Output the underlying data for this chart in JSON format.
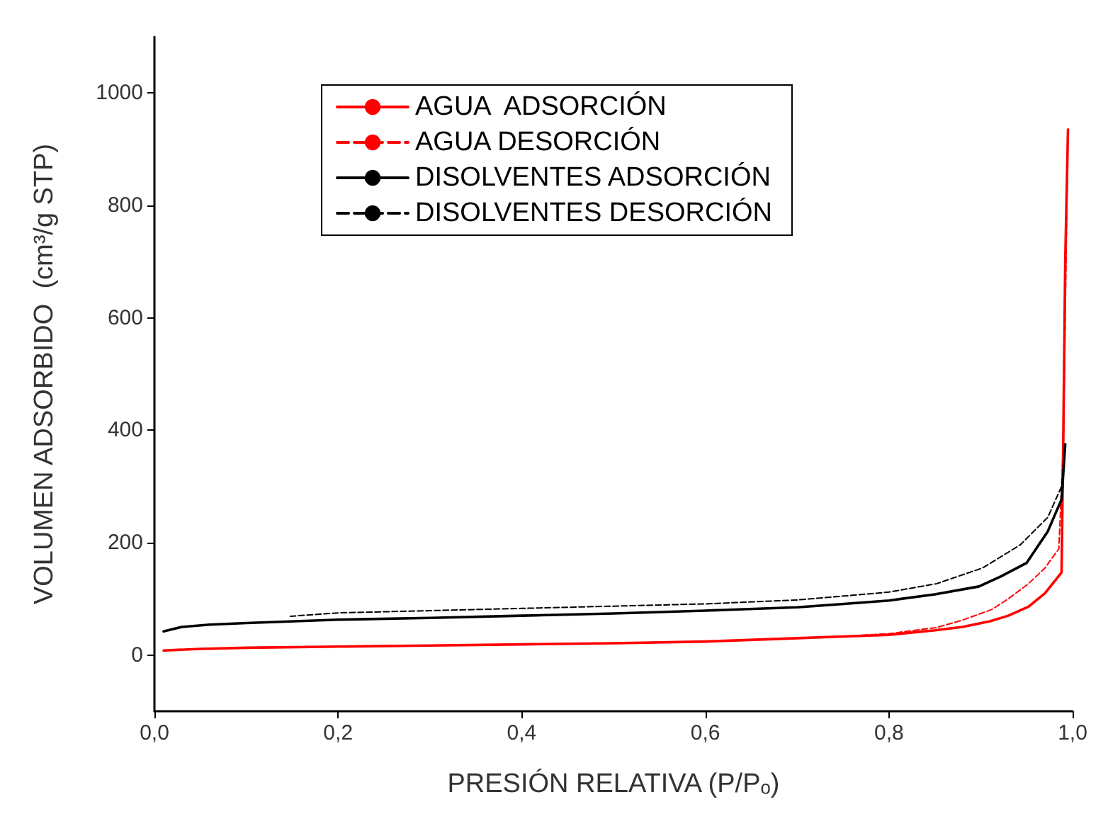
{
  "chart_data": {
    "type": "line",
    "xlabel": "PRESIÓN RELATIVA (P/Pₒ)",
    "ylabel": "VOLUMEN ADSORBIDO  (cm³/g STP)",
    "xlim": [
      0,
      1
    ],
    "xticks": [
      {
        "value": 0,
        "label": "0,0"
      },
      {
        "value": 0.2,
        "label": "0,2"
      },
      {
        "value": 0.4,
        "label": "0,4"
      },
      {
        "value": 0.6,
        "label": "0,6"
      },
      {
        "value": 0.8,
        "label": "0,8"
      },
      {
        "value": 1,
        "label": "1,0"
      }
    ],
    "ylim": [
      -100,
      1100
    ],
    "yticks": [
      0,
      200,
      400,
      600,
      800,
      1000
    ],
    "grid": false,
    "legend": "top",
    "marker": "none",
    "series": [
      {
        "name": "AGUA  ADSORCIÓN",
        "color": "#ff0000",
        "line_style": "solid",
        "x": [
          0.01,
          0.05,
          0.1,
          0.2,
          0.3,
          0.4,
          0.5,
          0.6,
          0.7,
          0.75,
          0.8,
          0.85,
          0.88,
          0.91,
          0.93,
          0.952,
          0.97,
          0.988,
          0.99,
          0.992,
          0.995
        ],
        "values": [
          8,
          11,
          13,
          15,
          17,
          19,
          21,
          24,
          30,
          33,
          36,
          44,
          50,
          60,
          70,
          86,
          110,
          147,
          400,
          700,
          935
        ]
      },
      {
        "name": "AGUA DESORCIÓN",
        "color": "#ff0000",
        "line_style": "dashed",
        "x": [
          0.995,
          0.992,
          0.99,
          0.988,
          0.985,
          0.97,
          0.952,
          0.93,
          0.912,
          0.88,
          0.852,
          0.8,
          0.75
        ],
        "values": [
          935,
          600,
          380,
          300,
          189,
          155,
          127,
          100,
          81,
          62,
          49,
          38,
          33
        ]
      },
      {
        "name": "DISOLVENTES ADSORCIÓN",
        "color": "#000000",
        "line_style": "solid",
        "x": [
          0.01,
          0.03,
          0.06,
          0.1,
          0.2,
          0.3,
          0.4,
          0.5,
          0.6,
          0.7,
          0.751,
          0.8,
          0.85,
          0.898,
          0.922,
          0.95,
          0.973,
          0.988,
          0.992
        ],
        "values": [
          42,
          50,
          54,
          57,
          63,
          66,
          70,
          74,
          79,
          85,
          91,
          97,
          108,
          122,
          140,
          164,
          220,
          277,
          375
        ]
      },
      {
        "name": "DISOLVENTES DESORCIÓN",
        "color": "#000000",
        "line_style": "dashed",
        "x": [
          0.992,
          0.988,
          0.973,
          0.943,
          0.902,
          0.852,
          0.8,
          0.751,
          0.7,
          0.6,
          0.5,
          0.4,
          0.3,
          0.2,
          0.148
        ],
        "values": [
          375,
          300,
          245,
          196,
          155,
          127,
          112,
          105,
          98,
          91,
          87,
          83,
          79,
          75,
          69
        ]
      }
    ]
  }
}
